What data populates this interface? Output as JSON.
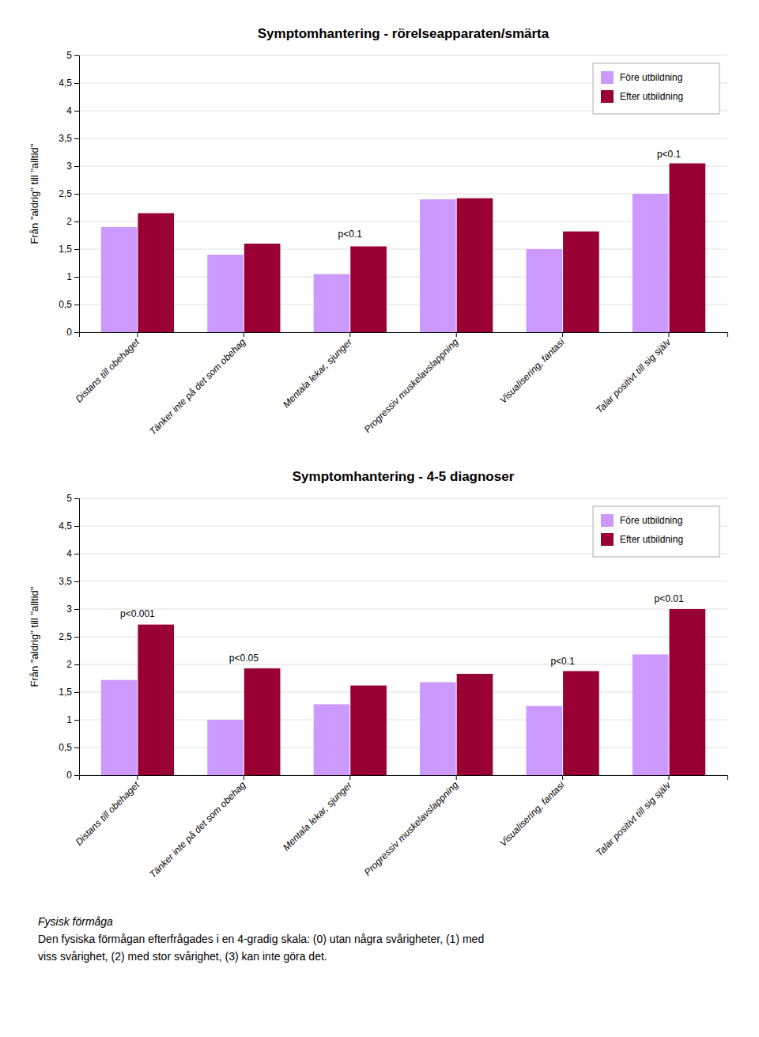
{
  "chart_data": [
    {
      "type": "bar",
      "title": "Symptomhantering - rörelseapparaten/smärta",
      "categories": [
        "Distans till obehaget",
        "Tänker inte på det som obehag",
        "Mentala lekar, sjunger",
        "Progressiv muskelavslappning",
        "Visualisering, fantasi",
        "Talar positivt till sig själv"
      ],
      "series": [
        {
          "name": "Före utbildning",
          "color": "#CC99FF",
          "values": [
            1.9,
            1.4,
            1.05,
            2.4,
            1.5,
            2.5
          ]
        },
        {
          "name": "Efter utbildning",
          "color": "#990033",
          "values": [
            2.15,
            1.6,
            1.55,
            2.42,
            1.82,
            3.05
          ]
        }
      ],
      "ylabel": "Från \"aldrig\" till \"alltid\"",
      "ylim": [
        0,
        5
      ],
      "yticks": [
        0,
        {
          "value": 0.5,
          "label": "0,5"
        },
        1,
        {
          "value": 1.5,
          "label": "1,5"
        },
        2,
        {
          "value": 2.5,
          "label": "2,5"
        },
        3,
        {
          "value": 3.5,
          "label": "3,5"
        },
        4,
        {
          "value": 4.5,
          "label": "4,5"
        },
        5
      ],
      "grid": true,
      "legend": "upper right",
      "annotations": [
        {
          "text": "p<0.1",
          "category": "Mentala lekar, sjunger",
          "y": 1.67
        },
        {
          "text": "p<0.1",
          "category": "Talar positivt till sig själv",
          "y": 3.12
        }
      ]
    },
    {
      "type": "bar",
      "title": "Symptomhantering - 4-5 diagnoser",
      "categories": [
        "Distans till obehaget",
        "Tänker inte på det som obehag",
        "Mentala lekar, sjunger",
        "Progressiv muskelavslappning",
        "Visualisering, fantasi",
        "Talar positivt till sig själv"
      ],
      "series": [
        {
          "name": "Före utbildning",
          "color": "#CC99FF",
          "values": [
            1.72,
            1.0,
            1.28,
            1.68,
            1.25,
            2.18
          ]
        },
        {
          "name": "Efter utbildning",
          "color": "#990033",
          "values": [
            2.72,
            1.93,
            1.62,
            1.83,
            1.88,
            3.0
          ]
        }
      ],
      "ylabel": "Från \"aldrig\" till \"alltid\"",
      "ylim": [
        0,
        5
      ],
      "yticks": [
        0,
        {
          "value": 0.5,
          "label": "0,5"
        },
        1,
        {
          "value": 1.5,
          "label": "1,5"
        },
        2,
        {
          "value": 2.5,
          "label": "2,5"
        },
        3,
        {
          "value": 3.5,
          "label": "3,5"
        },
        4,
        {
          "value": 4.5,
          "label": "4,5"
        },
        5
      ],
      "grid": true,
      "legend": "upper right",
      "annotations": [
        {
          "text": "p<0.001",
          "category": "Distans till obehaget",
          "y": 2.82
        },
        {
          "text": "p<0.05",
          "category": "Tänker inte på det som obehag",
          "y": 2.02
        },
        {
          "text": "p<0.1",
          "category": "Visualisering, fantasi",
          "y": 1.96
        },
        {
          "text": "p<0.01",
          "category": "Talar positivt till sig själv",
          "y": 3.08
        }
      ]
    }
  ],
  "footnote": {
    "title": "Fysisk förmåga",
    "lines": [
      "Den fysiska förmågan efterfrågades i en 4-gradig skala: (0) utan några svårigheter, (1) med",
      "viss svårighet, (2) med stor svårighet, (3) kan inte göra det."
    ]
  }
}
